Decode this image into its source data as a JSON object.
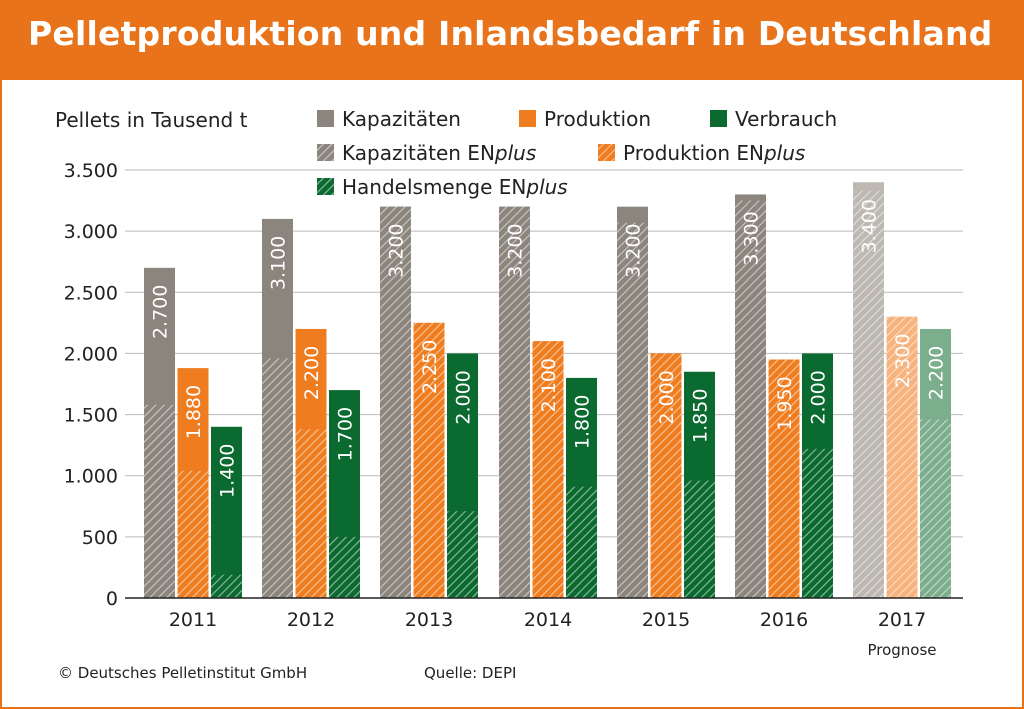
{
  "title": "Pelletproduktion und Inlandsbedarf in Deutschland",
  "footer": {
    "copyright": "© Deutsches Pelletinstitut GmbH",
    "source": "Quelle: DEPI"
  },
  "colors": {
    "header": "#e8731a",
    "kapazitaeten": "#8c857d",
    "produktion": "#ef7d1f",
    "verbrauch": "#0b6a30",
    "kapazitaeten_light": "#bdb8b2",
    "produktion_light": "#f7b37d",
    "verbrauch_light": "#7cae8d"
  },
  "chart_data": {
    "type": "bar",
    "ylabel": "Pellets in Tausend t",
    "ylim": [
      0,
      3500
    ],
    "yticks": [
      0,
      500,
      1000,
      1500,
      2000,
      2500,
      3000,
      3500
    ],
    "ytick_labels": [
      "0",
      "500",
      "1.000",
      "1.500",
      "2.000",
      "2.500",
      "3.000",
      "3.500"
    ],
    "grid": true,
    "categories": [
      "2011",
      "2012",
      "2013",
      "2014",
      "2015",
      "2016",
      "2017"
    ],
    "category_note": {
      "index": 6,
      "text": "Prognose"
    },
    "series": [
      {
        "name": "Kapazitäten",
        "values": [
          2700,
          3100,
          3200,
          3200,
          3200,
          3300,
          3400
        ],
        "labels": [
          "2.700",
          "3.100",
          "3.200",
          "3.200",
          "3.200",
          "3.300",
          "3.400"
        ],
        "enplus_name": "Kapazitäten ENplus",
        "enplus_values": [
          1580,
          1960,
          3200,
          3200,
          3070,
          3250,
          3330
        ]
      },
      {
        "name": "Produktion",
        "values": [
          1880,
          2200,
          2250,
          2100,
          2000,
          1950,
          2300
        ],
        "labels": [
          "1.880",
          "2.200",
          "2.250",
          "2.100",
          "2.000",
          "1.950",
          "2.300"
        ],
        "enplus_name": "Produktion ENplus",
        "enplus_values": [
          1040,
          1380,
          2250,
          2100,
          2000,
          1950,
          2300
        ]
      },
      {
        "name": "Verbrauch",
        "values": [
          1400,
          1700,
          2000,
          1800,
          1850,
          2000,
          2200
        ],
        "labels": [
          "1.400",
          "1.700",
          "2.000",
          "1.800",
          "1.850",
          "2.000",
          "2.200"
        ],
        "enplus_name": "Handelsmenge ENplus",
        "enplus_values": [
          190,
          500,
          710,
          910,
          960,
          1220,
          1460
        ]
      }
    ],
    "legend": {
      "placement": "top",
      "entries": [
        {
          "label": "Kapazitäten",
          "pattern": "solid",
          "series": 0
        },
        {
          "label": "Produktion",
          "pattern": "solid",
          "series": 1
        },
        {
          "label": "Verbrauch",
          "pattern": "solid",
          "series": 2
        },
        {
          "label_main": "Kapazitäten EN",
          "label_italic": "plus",
          "pattern": "hatched",
          "series": 0
        },
        {
          "label_main": "Produktion EN",
          "label_italic": "plus",
          "pattern": "hatched",
          "series": 1
        },
        {
          "label_main": "Handelsmenge EN",
          "label_italic": "plus",
          "pattern": "hatched",
          "series": 2
        }
      ]
    }
  }
}
